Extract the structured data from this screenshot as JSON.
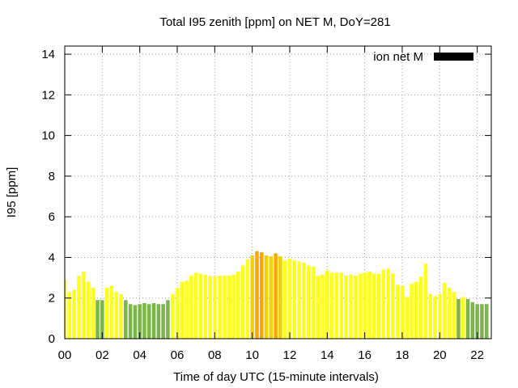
{
  "chart_data": {
    "type": "bar",
    "title": "Total I95 zenith [ppm] on NET M, DoY=281",
    "xlabel": "Time of day UTC (15-minute intervals)",
    "ylabel": "I95 [ppm]",
    "xlim": [
      0,
      22.75
    ],
    "ylim": [
      0,
      14.4
    ],
    "x_ticks": [
      "00",
      "02",
      "04",
      "06",
      "08",
      "10",
      "12",
      "14",
      "16",
      "18",
      "20",
      "22"
    ],
    "y_ticks": [
      "0",
      "2",
      "4",
      "6",
      "8",
      "10",
      "12",
      "14"
    ],
    "grid": true,
    "legend": {
      "label": "ion net M",
      "position": "top-right",
      "color": "#000000"
    },
    "bar_interval_hours": 0.25,
    "color_scale": {
      "green": "#7ab648",
      "yellow": "#ffff1a",
      "gold": "#f5d000",
      "orange": "#ffa500",
      "rule": "value < 2 green; value < 4 yellow; value < 4.2 gold; else orange"
    },
    "values": [
      2.9,
      2.3,
      2.4,
      3.1,
      3.3,
      2.8,
      2.5,
      1.9,
      1.9,
      2.5,
      2.6,
      2.3,
      2.2,
      1.9,
      1.7,
      1.65,
      1.7,
      1.75,
      1.7,
      1.75,
      1.7,
      1.7,
      1.9,
      2.2,
      2.5,
      2.8,
      2.85,
      3.1,
      3.25,
      3.2,
      3.15,
      3.1,
      3.05,
      3.1,
      3.1,
      3.1,
      3.15,
      3.3,
      3.6,
      3.9,
      4.1,
      4.3,
      4.25,
      4.1,
      4.05,
      4.2,
      4.05,
      3.85,
      3.95,
      3.85,
      3.8,
      3.75,
      3.6,
      3.55,
      3.1,
      3.15,
      3.35,
      3.25,
      3.25,
      3.25,
      3.1,
      3.15,
      3.1,
      3.2,
      3.25,
      3.3,
      3.2,
      3.2,
      3.4,
      3.45,
      3.2,
      2.65,
      2.6,
      2.05,
      2.7,
      2.8,
      3.05,
      3.7,
      2.2,
      2.1,
      2.2,
      2.75,
      2.5,
      2.3,
      1.95,
      2.05,
      1.95,
      1.8,
      1.7,
      1.7,
      1.7
    ]
  }
}
